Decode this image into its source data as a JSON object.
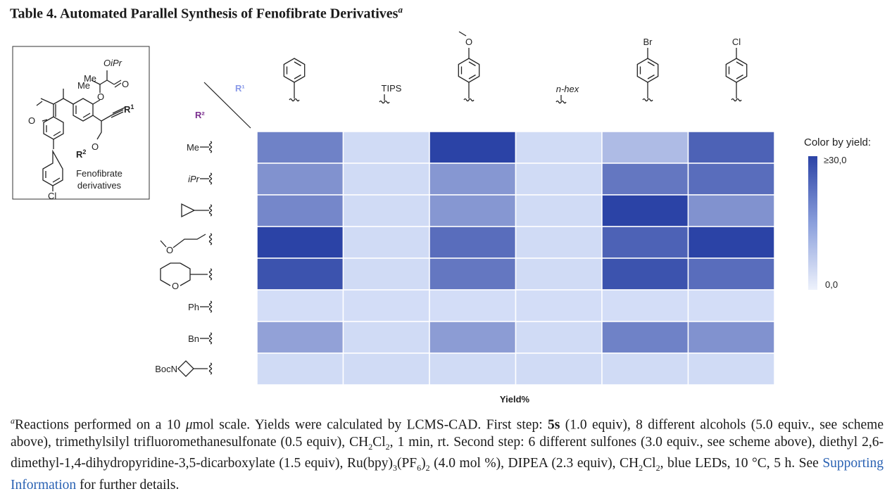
{
  "title": {
    "text": "Table 4. Automated Parallel Synthesis of Fenofibrate Derivatives",
    "footnote_marker": "a"
  },
  "scheme": {
    "labels": {
      "me1": "Me",
      "me2": "Me",
      "oipr": "OiPr",
      "o_carbonyl": "O",
      "o_ketone": "O",
      "o_ether": "O",
      "r1": "R",
      "r1_sup": "1",
      "r2": "R",
      "r2_sup": "2",
      "cl": "Cl",
      "name_line1": "Fenofibrate",
      "name_line2": "derivatives"
    },
    "r1_axis": "R¹",
    "r2_axis": "R²",
    "r1_color": "#8a9ae8",
    "r2_color": "#7b2f8f"
  },
  "columns": [
    {
      "label": "",
      "structure": "phenyl"
    },
    {
      "label": "TIPS",
      "structure": "TIPS"
    },
    {
      "label": "O",
      "structure": "4-methoxyphenyl"
    },
    {
      "label": "n-hex",
      "structure": "n-hexyl"
    },
    {
      "label": "Br",
      "structure": "4-bromophenyl"
    },
    {
      "label": "Cl",
      "structure": "4-chlorophenyl"
    }
  ],
  "rows": [
    {
      "label": "Me",
      "structure": "methyl"
    },
    {
      "label": "iPr",
      "structure": "isopropyl"
    },
    {
      "label": "",
      "structure": "cyclopropyl"
    },
    {
      "label": "O",
      "structure": "2-methoxyethyl"
    },
    {
      "label": "O",
      "structure": "tetrahydropyranyl"
    },
    {
      "label": "Ph",
      "structure": "phenyl"
    },
    {
      "label": "Bn",
      "structure": "benzyl"
    },
    {
      "label": "BocN",
      "structure": "N-Boc-azetidinyl"
    }
  ],
  "chart_data": {
    "type": "heatmap",
    "xlabel": "Yield%",
    "colorbar": {
      "title": "Color by yield:",
      "max_label": "≥30,0",
      "min_label": "0,0",
      "range": [
        0,
        30
      ],
      "low_color": "#d6e0f8",
      "high_color": "#2b43a6"
    },
    "values": [
      [
        18,
        1,
        30,
        1,
        7,
        24
      ],
      [
        15,
        1,
        14,
        1,
        20,
        22
      ],
      [
        17,
        1,
        14,
        1,
        30,
        15
      ],
      [
        30,
        1,
        22,
        1,
        24,
        30
      ],
      [
        27,
        1,
        20,
        1,
        27,
        22
      ],
      [
        0.5,
        0.5,
        0.5,
        0.5,
        0.5,
        0.5
      ],
      [
        12,
        1,
        13,
        1,
        18,
        15
      ],
      [
        1,
        1,
        1,
        1,
        1,
        1
      ]
    ]
  },
  "footnote": [
    {
      "t": "a",
      "s": "sup"
    },
    {
      "t": "Reactions performed on a 10 "
    },
    {
      "t": "μ",
      "s": "i"
    },
    {
      "t": "mol scale. Yields were calculated by LCMS-CAD. First step: "
    },
    {
      "t": "5s",
      "s": "b"
    },
    {
      "t": " (1.0 equiv), 8 different alcohols (5.0 equiv., see scheme above), trimethylsilyl trifluoromethanesulfonate (0.5 equiv), CH"
    },
    {
      "t": "2",
      "s": "sub"
    },
    {
      "t": "Cl"
    },
    {
      "t": "2",
      "s": "sub"
    },
    {
      "t": ", 1 min, rt. Second step: 6 different sulfones (3.0 equiv., see scheme above), diethyl 2,6-dimethyl-1,4-dihydropyridine-3,5-dicarboxylate (1.5 equiv), Ru(bpy)"
    },
    {
      "t": "3",
      "s": "sub"
    },
    {
      "t": "(PF"
    },
    {
      "t": "6",
      "s": "sub"
    },
    {
      "t": ")"
    },
    {
      "t": "2",
      "s": "sub"
    },
    {
      "t": " (4.0 mol %), DIPEA (2.3 equiv), CH"
    },
    {
      "t": "2",
      "s": "sub"
    },
    {
      "t": "Cl"
    },
    {
      "t": "2",
      "s": "sub"
    },
    {
      "t": ", blue LEDs, 10 °C, 5 h. See "
    },
    {
      "t": "Supporting Information",
      "s": "link"
    },
    {
      "t": " for further details."
    }
  ]
}
